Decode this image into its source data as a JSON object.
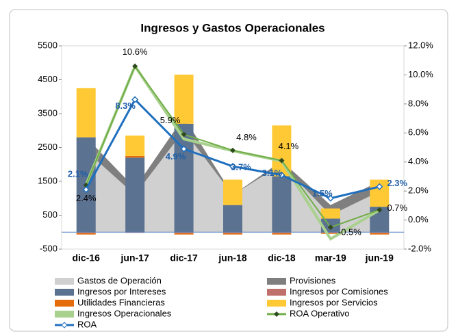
{
  "chart_data": {
    "type": "combo",
    "title": "Ingresos y Gastos Operacionales",
    "categories": [
      "dic-16",
      "jun-17",
      "dic-17",
      "jun-18",
      "dic-18",
      "mar-19",
      "jun-19"
    ],
    "ylim": [
      -500,
      5500
    ],
    "yticks": [
      -500,
      500,
      1500,
      2500,
      3500,
      4500,
      5500
    ],
    "y2lim": [
      -2,
      12
    ],
    "y2ticks": [
      {
        "value": -2,
        "label": "-2.0%"
      },
      {
        "value": 0,
        "label": "0.0%"
      },
      {
        "value": 2,
        "label": "2.0%"
      },
      {
        "value": 4,
        "label": "4.0%"
      },
      {
        "value": 6,
        "label": "6.0%"
      },
      {
        "value": 8,
        "label": "8.0%"
      },
      {
        "value": 10,
        "label": "10.0%"
      },
      {
        "value": 12,
        "label": "12.0%"
      }
    ],
    "series": [
      {
        "name": "Gastos de Operación",
        "type": "area",
        "color": "#d0d0d0",
        "values": [
          2400,
          1100,
          3000,
          1100,
          2000,
          500,
          1200
        ]
      },
      {
        "name": "Provisiones",
        "type": "area",
        "color": "#7f7f7f",
        "values": [
          400,
          200,
          400,
          0,
          100,
          300,
          300
        ]
      },
      {
        "name": "Ingresos por Intereses",
        "type": "bar",
        "color": "#5b7290",
        "values": [
          2800,
          2200,
          3200,
          800,
          1650,
          400,
          750
        ]
      },
      {
        "name": "Ingresos por Comisiones",
        "type": "bar",
        "color": "#c0706a",
        "values": [
          -30,
          -20,
          -30,
          -30,
          -30,
          -20,
          -30
        ]
      },
      {
        "name": "Utilidades Financieras",
        "type": "bar",
        "color": "#e46c0a",
        "values": [
          -40,
          50,
          -40,
          -40,
          -40,
          -30,
          -40
        ]
      },
      {
        "name": "Ingresos por Servicios",
        "type": "bar",
        "color": "#ffc936",
        "values": [
          1450,
          600,
          1450,
          750,
          1500,
          300,
          800
        ]
      },
      {
        "name": "Ingresos Operacionales",
        "type": "line",
        "color": "#a9d18e",
        "values": [
          1400,
          4900,
          2750,
          2400,
          2100,
          -200,
          650
        ]
      },
      {
        "name": "ROA Operativo",
        "type": "line",
        "axis": "y2",
        "color": "#70ad47",
        "values": [
          2.4,
          10.6,
          5.9,
          4.8,
          4.1,
          -0.5,
          0.7
        ],
        "value_labels": [
          "2.4%",
          "10.6%",
          "5.9%",
          "4.8%",
          "4.1%",
          "-0.5%",
          "0.7%"
        ]
      },
      {
        "name": "ROA",
        "type": "line",
        "axis": "y2",
        "color": "#1f6fbf",
        "values": [
          2.1,
          8.3,
          4.9,
          3.7,
          3.1,
          1.5,
          2.3
        ],
        "value_labels": [
          "2.1%",
          "8.3%",
          "4.9%",
          "3.7%",
          "3.1%",
          "1.5%",
          "2.3%"
        ]
      }
    ]
  }
}
